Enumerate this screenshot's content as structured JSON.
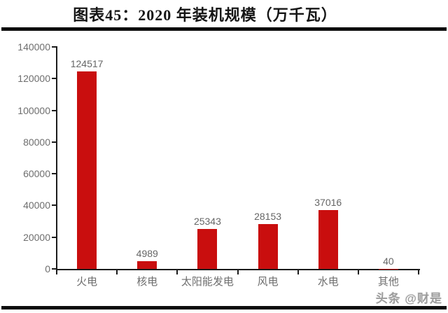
{
  "page": {
    "title": "图表45：2020 年装机规模（万千瓦）",
    "watermark": "头条 @财是"
  },
  "chart_data": {
    "type": "bar",
    "title": "图表45：2020 年装机规模（万千瓦）",
    "categories": [
      "火电",
      "核电",
      "太阳能发电",
      "风电",
      "水电",
      "其他"
    ],
    "values": [
      124517,
      4989,
      25343,
      28153,
      37016,
      40
    ],
    "data_labels": [
      "124517",
      "4989",
      "25343",
      "28153",
      "37016",
      "40"
    ],
    "xlabel": "",
    "ylabel": "",
    "ylim": [
      0,
      140000
    ],
    "yticks": [
      0,
      20000,
      40000,
      60000,
      80000,
      100000,
      120000,
      140000
    ],
    "grid": false,
    "legend": false,
    "bar_color": "#c90e0e",
    "axis_color": "#1c1c1c",
    "tick_label_color": "#6e6e6e"
  },
  "colors": {
    "bar": "#c90e0e",
    "axis": "#1c1c1c",
    "labels": "#6e6e6e",
    "title": "#151515",
    "rule": "#0c0c0c",
    "watermark": "#9c9c9c",
    "background": "#ffffff"
  }
}
